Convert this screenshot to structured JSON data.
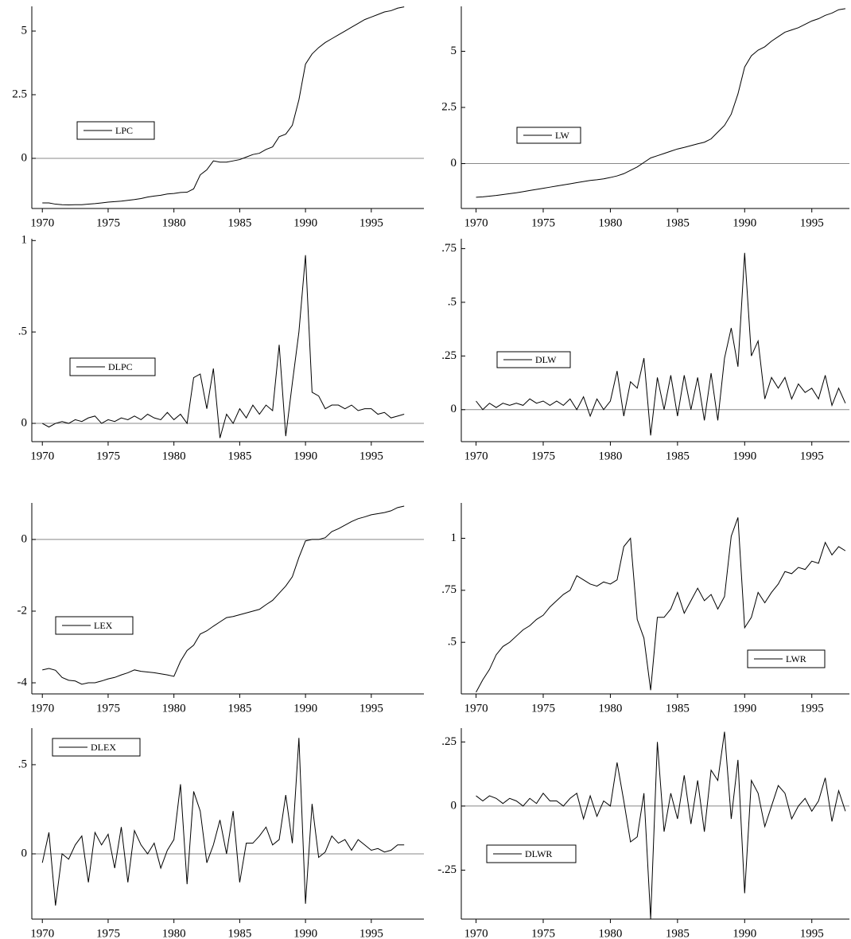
{
  "chart_data": [
    {
      "type": "line",
      "xlim": [
        1969.2,
        1999
      ],
      "xticks": [
        1970,
        1975,
        1980,
        1985,
        1990,
        1995
      ],
      "ylim": [
        -1.97,
        5.97
      ],
      "yticks": [
        0,
        2.5,
        5
      ],
      "x": [
        1970,
        1970.5,
        1971,
        1971.5,
        1972,
        1972.5,
        1973,
        1973.5,
        1974,
        1974.5,
        1975,
        1975.5,
        1976,
        1976.5,
        1977,
        1977.5,
        1978,
        1978.5,
        1979,
        1979.5,
        1980,
        1980.5,
        1981,
        1981.5,
        1982,
        1982.5,
        1983,
        1983.5,
        1984,
        1984.5,
        1985,
        1985.5,
        1986,
        1986.5,
        1987,
        1987.5,
        1988,
        1988.5,
        1989,
        1989.5,
        1990,
        1990.5,
        1991,
        1991.5,
        1992,
        1992.5,
        1993,
        1993.5,
        1994,
        1994.5,
        1995,
        1995.5,
        1996,
        1996.5,
        1997,
        1997.5
      ],
      "series": [
        {
          "name": "LPC",
          "color": "#000000",
          "values": [
            -1.75,
            -1.75,
            -1.8,
            -1.82,
            -1.83,
            -1.82,
            -1.82,
            -1.8,
            -1.78,
            -1.75,
            -1.72,
            -1.7,
            -1.68,
            -1.65,
            -1.62,
            -1.58,
            -1.52,
            -1.48,
            -1.45,
            -1.4,
            -1.38,
            -1.34,
            -1.33,
            -1.2,
            -0.65,
            -0.45,
            -0.1,
            -0.15,
            -0.15,
            -0.1,
            -0.05,
            0.05,
            0.15,
            0.2,
            0.35,
            0.45,
            0.85,
            0.95,
            1.3,
            2.3,
            3.7,
            4.1,
            4.35,
            4.55,
            4.7,
            4.85,
            5.0,
            5.15,
            5.3,
            5.45,
            5.55,
            5.65,
            5.75,
            5.8,
            5.9,
            5.95
          ]
        }
      ]
    },
    {
      "type": "line",
      "xlim": [
        1968.9,
        1997.8
      ],
      "xticks": [
        1970,
        1975,
        1980,
        1985,
        1990,
        1995
      ],
      "ylim": [
        -2.0,
        7.0
      ],
      "yticks": [
        0,
        2.5,
        5
      ],
      "x": [
        1970,
        1970.5,
        1971,
        1971.5,
        1972,
        1972.5,
        1973,
        1973.5,
        1974,
        1974.5,
        1975,
        1975.5,
        1976,
        1976.5,
        1977,
        1977.5,
        1978,
        1978.5,
        1979,
        1979.5,
        1980,
        1980.5,
        1981,
        1981.5,
        1982,
        1982.5,
        1983,
        1983.5,
        1984,
        1984.5,
        1985,
        1985.5,
        1986,
        1986.5,
        1987,
        1987.5,
        1988,
        1988.5,
        1989,
        1989.5,
        1990,
        1990.5,
        1991,
        1991.5,
        1992,
        1992.5,
        1993,
        1993.5,
        1994,
        1994.5,
        1995,
        1995.5,
        1996,
        1996.5,
        1997,
        1997.5
      ],
      "series": [
        {
          "name": "LW",
          "color": "#000000",
          "values": [
            -1.5,
            -1.48,
            -1.45,
            -1.42,
            -1.38,
            -1.34,
            -1.3,
            -1.25,
            -1.2,
            -1.15,
            -1.1,
            -1.05,
            -1.0,
            -0.95,
            -0.9,
            -0.85,
            -0.8,
            -0.75,
            -0.72,
            -0.68,
            -0.62,
            -0.55,
            -0.45,
            -0.3,
            -0.15,
            0.05,
            0.25,
            0.35,
            0.45,
            0.55,
            0.65,
            0.72,
            0.8,
            0.88,
            0.95,
            1.1,
            1.4,
            1.7,
            2.2,
            3.1,
            4.3,
            4.8,
            5.05,
            5.2,
            5.45,
            5.65,
            5.85,
            5.95,
            6.05,
            6.2,
            6.35,
            6.45,
            6.6,
            6.7,
            6.85,
            6.9
          ]
        }
      ]
    },
    {
      "type": "line",
      "xlim": [
        1969.2,
        1999
      ],
      "xticks": [
        1970,
        1975,
        1980,
        1985,
        1990,
        1995
      ],
      "ylim": [
        -0.1,
        1.01
      ],
      "yticks": [
        0,
        {
          "value": 0.5,
          "label": ".5"
        },
        1
      ],
      "x": [
        1970,
        1970.5,
        1971,
        1971.5,
        1972,
        1972.5,
        1973,
        1973.5,
        1974,
        1974.5,
        1975,
        1975.5,
        1976,
        1976.5,
        1977,
        1977.5,
        1978,
        1978.5,
        1979,
        1979.5,
        1980,
        1980.5,
        1981,
        1981.5,
        1982,
        1982.5,
        1983,
        1983.5,
        1984,
        1984.5,
        1985,
        1985.5,
        1986,
        1986.5,
        1987,
        1987.5,
        1988,
        1988.5,
        1989,
        1989.5,
        1990,
        1990.5,
        1991,
        1991.5,
        1992,
        1992.5,
        1993,
        1993.5,
        1994,
        1994.5,
        1995,
        1995.5,
        1996,
        1996.5,
        1997,
        1997.5
      ],
      "series": [
        {
          "name": "DLPC",
          "color": "#000000",
          "values": [
            0.0,
            -0.02,
            0.0,
            0.01,
            0.0,
            0.02,
            0.01,
            0.03,
            0.04,
            0.0,
            0.02,
            0.01,
            0.03,
            0.02,
            0.04,
            0.02,
            0.05,
            0.03,
            0.02,
            0.06,
            0.02,
            0.05,
            0.0,
            0.25,
            0.27,
            0.08,
            0.3,
            -0.08,
            0.05,
            0.0,
            0.08,
            0.03,
            0.1,
            0.05,
            0.1,
            0.07,
            0.43,
            -0.07,
            0.22,
            0.5,
            0.92,
            0.17,
            0.15,
            0.08,
            0.1,
            0.1,
            0.08,
            0.1,
            0.07,
            0.08,
            0.08,
            0.05,
            0.06,
            0.03,
            0.04,
            0.05
          ]
        }
      ]
    },
    {
      "type": "line",
      "xlim": [
        1968.9,
        1997.8
      ],
      "xticks": [
        1970,
        1975,
        1980,
        1985,
        1990,
        1995
      ],
      "ylim": [
        -0.149,
        0.796
      ],
      "yticks": [
        0,
        {
          "value": 0.25,
          "label": ".25"
        },
        {
          "value": 0.5,
          "label": ".5"
        },
        {
          "value": 0.75,
          "label": ".75"
        }
      ],
      "x": [
        1970,
        1970.5,
        1971,
        1971.5,
        1972,
        1972.5,
        1973,
        1973.5,
        1974,
        1974.5,
        1975,
        1975.5,
        1976,
        1976.5,
        1977,
        1977.5,
        1978,
        1978.5,
        1979,
        1979.5,
        1980,
        1980.5,
        1981,
        1981.5,
        1982,
        1982.5,
        1983,
        1983.5,
        1984,
        1984.5,
        1985,
        1985.5,
        1986,
        1986.5,
        1987,
        1987.5,
        1988,
        1988.5,
        1989,
        1989.5,
        1990,
        1990.5,
        1991,
        1991.5,
        1992,
        1992.5,
        1993,
        1993.5,
        1994,
        1994.5,
        1995,
        1995.5,
        1996,
        1996.5,
        1997,
        1997.5
      ],
      "series": [
        {
          "name": "DLW",
          "color": "#000000",
          "values": [
            0.04,
            0.0,
            0.03,
            0.01,
            0.03,
            0.02,
            0.03,
            0.02,
            0.05,
            0.03,
            0.04,
            0.02,
            0.04,
            0.02,
            0.05,
            0.0,
            0.06,
            -0.03,
            0.05,
            0.0,
            0.04,
            0.18,
            -0.03,
            0.13,
            0.1,
            0.24,
            -0.12,
            0.15,
            0.0,
            0.16,
            -0.03,
            0.16,
            0.0,
            0.15,
            -0.05,
            0.17,
            -0.05,
            0.24,
            0.38,
            0.2,
            0.73,
            0.25,
            0.32,
            0.05,
            0.15,
            0.1,
            0.15,
            0.05,
            0.12,
            0.08,
            0.1,
            0.05,
            0.16,
            0.02,
            0.1,
            0.03
          ]
        }
      ]
    },
    {
      "type": "line",
      "xlim": [
        1969.2,
        1999
      ],
      "xticks": [
        1970,
        1975,
        1980,
        1985,
        1990,
        1995
      ],
      "ylim": [
        -4.31,
        1.02
      ],
      "yticks": [
        -4,
        -2,
        0
      ],
      "x": [
        1970,
        1970.5,
        1971,
        1971.5,
        1972,
        1972.5,
        1973,
        1973.5,
        1974,
        1974.5,
        1975,
        1975.5,
        1976,
        1976.5,
        1977,
        1977.5,
        1978,
        1978.5,
        1979,
        1979.5,
        1980,
        1980.5,
        1981,
        1981.5,
        1982,
        1982.5,
        1983,
        1983.5,
        1984,
        1984.5,
        1985,
        1985.5,
        1986,
        1986.5,
        1987,
        1987.5,
        1988,
        1988.5,
        1989,
        1989.5,
        1990,
        1990.5,
        1991,
        1991.5,
        1992,
        1992.5,
        1993,
        1993.5,
        1994,
        1994.5,
        1995,
        1995.5,
        1996,
        1996.5,
        1997,
        1997.5
      ],
      "series": [
        {
          "name": "LEX",
          "color": "#000000",
          "values": [
            -3.64,
            -3.6,
            -3.65,
            -3.85,
            -3.93,
            -3.95,
            -4.04,
            -4.0,
            -4.0,
            -3.95,
            -3.89,
            -3.85,
            -3.78,
            -3.72,
            -3.64,
            -3.68,
            -3.7,
            -3.72,
            -3.75,
            -3.78,
            -3.82,
            -3.4,
            -3.1,
            -2.95,
            -2.64,
            -2.55,
            -2.42,
            -2.3,
            -2.18,
            -2.15,
            -2.1,
            -2.05,
            -2.0,
            -1.95,
            -1.82,
            -1.7,
            -1.5,
            -1.3,
            -1.04,
            -0.5,
            -0.04,
            0.0,
            0.0,
            0.05,
            0.22,
            0.3,
            0.4,
            0.5,
            0.58,
            0.63,
            0.69,
            0.72,
            0.75,
            0.8,
            0.89,
            0.93
          ]
        }
      ]
    },
    {
      "type": "line",
      "xlim": [
        1968.9,
        1997.8
      ],
      "xticks": [
        1970,
        1975,
        1980,
        1985,
        1990,
        1995
      ],
      "ylim": [
        0.252,
        1.17
      ],
      "yticks": [
        {
          "value": 0.5,
          "label": ".5"
        },
        {
          "value": 0.75,
          "label": ".75"
        },
        1
      ],
      "x": [
        1970,
        1970.5,
        1971,
        1971.5,
        1972,
        1972.5,
        1973,
        1973.5,
        1974,
        1974.5,
        1975,
        1975.5,
        1976,
        1976.5,
        1977,
        1977.5,
        1978,
        1978.5,
        1979,
        1979.5,
        1980,
        1980.5,
        1981,
        1981.5,
        1982,
        1982.5,
        1983,
        1983.5,
        1984,
        1984.5,
        1985,
        1985.5,
        1986,
        1986.5,
        1987,
        1987.5,
        1988,
        1988.5,
        1989,
        1989.5,
        1990,
        1990.5,
        1991,
        1991.5,
        1992,
        1992.5,
        1993,
        1993.5,
        1994,
        1994.5,
        1995,
        1995.5,
        1996,
        1996.5,
        1997,
        1997.5
      ],
      "series": [
        {
          "name": "LWR",
          "color": "#000000",
          "values": [
            0.26,
            0.32,
            0.37,
            0.44,
            0.48,
            0.5,
            0.53,
            0.56,
            0.58,
            0.61,
            0.63,
            0.67,
            0.7,
            0.73,
            0.75,
            0.82,
            0.8,
            0.78,
            0.77,
            0.79,
            0.78,
            0.8,
            0.96,
            1.0,
            0.61,
            0.52,
            0.27,
            0.62,
            0.62,
            0.66,
            0.74,
            0.64,
            0.7,
            0.76,
            0.7,
            0.73,
            0.66,
            0.72,
            1.01,
            1.1,
            0.57,
            0.62,
            0.74,
            0.69,
            0.74,
            0.78,
            0.84,
            0.83,
            0.86,
            0.85,
            0.89,
            0.88,
            0.98,
            0.92,
            0.96,
            0.94
          ]
        }
      ]
    },
    {
      "type": "line",
      "xlim": [
        1969.2,
        1999
      ],
      "xticks": [
        1970,
        1975,
        1980,
        1985,
        1990,
        1995
      ],
      "ylim": [
        -0.366,
        0.705
      ],
      "yticks": [
        0,
        {
          "value": 0.5,
          "label": ".5"
        }
      ],
      "x": [
        1970,
        1970.5,
        1971,
        1971.5,
        1972,
        1972.5,
        1973,
        1973.5,
        1974,
        1974.5,
        1975,
        1975.5,
        1976,
        1976.5,
        1977,
        1977.5,
        1978,
        1978.5,
        1979,
        1979.5,
        1980,
        1980.5,
        1981,
        1981.5,
        1982,
        1982.5,
        1983,
        1983.5,
        1984,
        1984.5,
        1985,
        1985.5,
        1986,
        1986.5,
        1987,
        1987.5,
        1988,
        1988.5,
        1989,
        1989.5,
        1990,
        1990.5,
        1991,
        1991.5,
        1992,
        1992.5,
        1993,
        1993.5,
        1994,
        1994.5,
        1995,
        1995.5,
        1996,
        1996.5,
        1997,
        1997.5
      ],
      "series": [
        {
          "name": "DLEX",
          "color": "#000000",
          "values": [
            -0.05,
            0.12,
            -0.29,
            0.0,
            -0.03,
            0.05,
            0.1,
            -0.16,
            0.12,
            0.05,
            0.11,
            -0.08,
            0.15,
            -0.16,
            0.13,
            0.05,
            0.0,
            0.06,
            -0.08,
            0.02,
            0.08,
            0.39,
            -0.17,
            0.35,
            0.24,
            -0.05,
            0.05,
            0.19,
            0.0,
            0.24,
            -0.16,
            0.06,
            0.06,
            0.1,
            0.15,
            0.05,
            0.08,
            0.33,
            0.06,
            0.65,
            -0.28,
            0.28,
            -0.02,
            0.01,
            0.1,
            0.06,
            0.08,
            0.02,
            0.08,
            0.05,
            0.02,
            0.03,
            0.01,
            0.02,
            0.05,
            0.05
          ]
        }
      ]
    },
    {
      "type": "line",
      "xlim": [
        1968.9,
        1997.8
      ],
      "xticks": [
        1970,
        1975,
        1980,
        1985,
        1990,
        1995
      ],
      "ylim": [
        -0.441,
        0.304
      ],
      "yticks": [
        {
          "value": -0.25,
          "label": "-.25"
        },
        0,
        {
          "value": 0.25,
          "label": ".25"
        }
      ],
      "x": [
        1970,
        1970.5,
        1971,
        1971.5,
        1972,
        1972.5,
        1973,
        1973.5,
        1974,
        1974.5,
        1975,
        1975.5,
        1976,
        1976.5,
        1977,
        1977.5,
        1978,
        1978.5,
        1979,
        1979.5,
        1980,
        1980.5,
        1981,
        1981.5,
        1982,
        1982.5,
        1983,
        1983.5,
        1984,
        1984.5,
        1985,
        1985.5,
        1986,
        1986.5,
        1987,
        1987.5,
        1988,
        1988.5,
        1989,
        1989.5,
        1990,
        1990.5,
        1991,
        1991.5,
        1992,
        1992.5,
        1993,
        1993.5,
        1994,
        1994.5,
        1995,
        1995.5,
        1996,
        1996.5,
        1997,
        1997.5
      ],
      "series": [
        {
          "name": "DLWR",
          "color": "#000000",
          "values": [
            0.04,
            0.02,
            0.04,
            0.03,
            0.01,
            0.03,
            0.02,
            0.0,
            0.03,
            0.01,
            0.05,
            0.02,
            0.02,
            0.0,
            0.03,
            0.05,
            -0.05,
            0.04,
            -0.04,
            0.02,
            0.0,
            0.17,
            0.02,
            -0.14,
            -0.12,
            0.05,
            -0.44,
            0.25,
            -0.1,
            0.05,
            -0.05,
            0.12,
            -0.07,
            0.1,
            -0.1,
            0.14,
            0.1,
            0.29,
            -0.05,
            0.18,
            -0.34,
            0.1,
            0.05,
            -0.08,
            0.0,
            0.08,
            0.05,
            -0.05,
            0.0,
            0.03,
            -0.02,
            0.02,
            0.11,
            -0.06,
            0.06,
            -0.02
          ]
        }
      ]
    }
  ]
}
